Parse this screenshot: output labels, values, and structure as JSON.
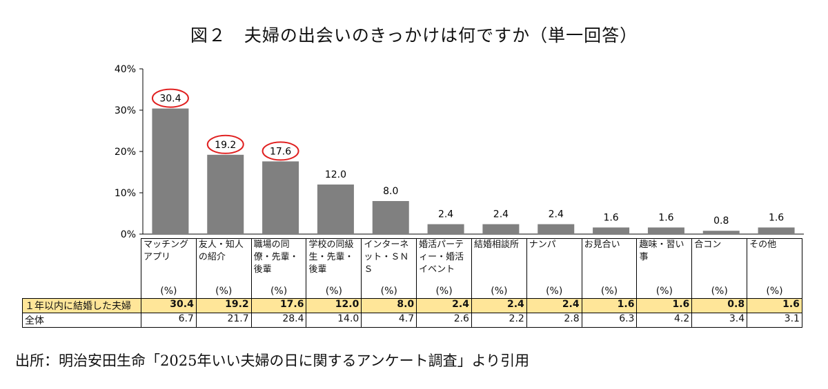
{
  "figure": {
    "title": "図２　夫婦の出会いのきっかけは何ですか（単一回答）",
    "source": "出所：明治安田生命「2025年いい夫婦の日に関するアンケート調査」より引用"
  },
  "chart_data": {
    "type": "bar",
    "categories": [
      "マッチングアプリ",
      "友人・知人の紹介",
      "職場の同僚・先輩・後輩",
      "学校の同級生・先輩・後輩",
      "インターネット・ＳＮＳ",
      "婚活パーティー・婚活イベント",
      "結婚相談所",
      "ナンパ",
      "お見合い",
      "趣味・習い事",
      "合コン",
      "その他"
    ],
    "series": [
      {
        "name": "１年以内に結婚した夫婦",
        "values": [
          30.4,
          19.2,
          17.6,
          12.0,
          8.0,
          2.4,
          2.4,
          2.4,
          1.6,
          1.6,
          0.8,
          1.6
        ]
      },
      {
        "name": "全体",
        "values": [
          6.7,
          21.7,
          28.4,
          14.0,
          4.7,
          2.6,
          2.2,
          2.8,
          6.3,
          4.2,
          3.4,
          3.1
        ]
      }
    ],
    "plotted_series": "１年以内に結婚した夫婦",
    "data_labels": [
      "30.4",
      "19.2",
      "17.6",
      "12.0",
      "8.0",
      "2.4",
      "2.4",
      "2.4",
      "1.6",
      "1.6",
      "0.8",
      "1.6"
    ],
    "highlighted_labels": [
      0,
      1,
      2
    ],
    "unit_label": "(%)",
    "yticks": [
      "0%",
      "10%",
      "20%",
      "30%",
      "40%"
    ],
    "ylim": [
      0,
      40
    ],
    "bar_color": "#808080",
    "highlight_color": "#e02020",
    "row_highlight_color": "#ffe699"
  }
}
